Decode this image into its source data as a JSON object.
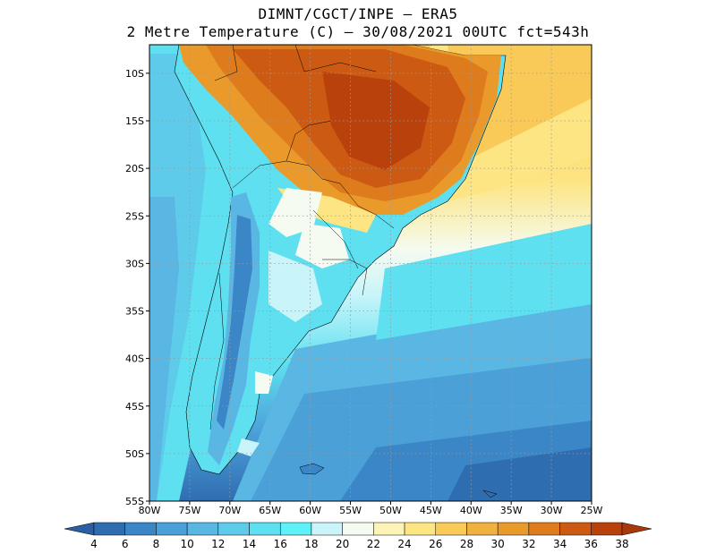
{
  "title": {
    "line1": "DIMNT/CGCT/INPE –  ERA5",
    "line2": "2 Metre Temperature (C) –  30/08/2021 00UTC fct=543h"
  },
  "map": {
    "lon_range": [
      -80,
      -25
    ],
    "lat_range": [
      -55,
      -7
    ],
    "lon_ticks": [
      "80W",
      "75W",
      "70W",
      "65W",
      "60W",
      "55W",
      "50W",
      "45W",
      "40W",
      "35W",
      "30W",
      "25W"
    ],
    "lat_ticks": [
      "10S",
      "15S",
      "20S",
      "25S",
      "30S",
      "35S",
      "40S",
      "45S",
      "50S",
      "55S"
    ],
    "lat_tick_values": [
      -10,
      -15,
      -20,
      -25,
      -30,
      -35,
      -40,
      -45,
      -50,
      -55
    ],
    "lon_tick_values": [
      -80,
      -75,
      -70,
      -65,
      -60,
      -55,
      -50,
      -45,
      -40,
      -35,
      -30,
      -25
    ]
  },
  "colorbar": {
    "labels": [
      "4",
      "6",
      "8",
      "10",
      "12",
      "14",
      "16",
      "18",
      "20",
      "22",
      "24",
      "26",
      "28",
      "30",
      "32",
      "34",
      "36",
      "38"
    ],
    "colors": [
      "#2f6db1",
      "#3a86c6",
      "#4ba0d8",
      "#5ab6e3",
      "#5fcbea",
      "#5ee0f0",
      "#5ef2f8",
      "#c8f4fa",
      "#f5fbf0",
      "#fbf4b6",
      "#fde583",
      "#f9ca58",
      "#f1b13f",
      "#ea9a2a",
      "#de7b1c",
      "#cd5a12",
      "#b9420c"
    ],
    "under_color": "#2a5fa3",
    "over_color": "#a9380a"
  }
}
